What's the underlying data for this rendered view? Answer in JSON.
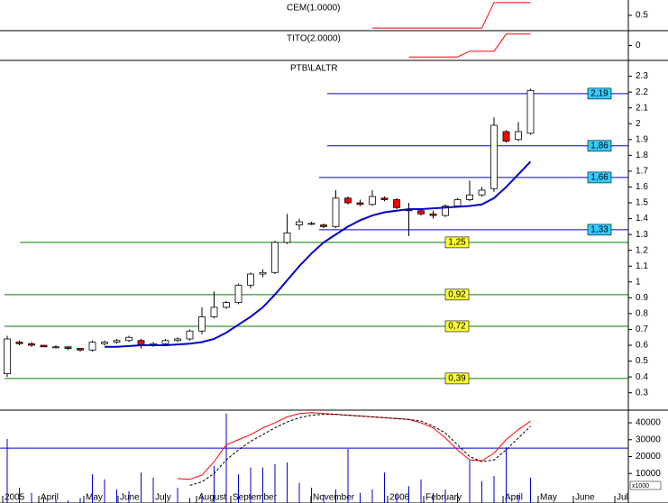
{
  "chart_data": [
    {
      "type": "line",
      "title": "CEM(1.0000)",
      "ylim": [
        -0.1,
        1.1
      ],
      "yticks": [
        0.5
      ],
      "series": [
        {
          "name": "CEM",
          "color": "#ff0000",
          "values": [
            null,
            null,
            null,
            null,
            null,
            null,
            null,
            null,
            null,
            null,
            null,
            null,
            null,
            null,
            null,
            null,
            null,
            null,
            null,
            null,
            null,
            null,
            null,
            null,
            null,
            null,
            null,
            null,
            null,
            null,
            0,
            0,
            0,
            0,
            0,
            0,
            0,
            0,
            0,
            0,
            1,
            1,
            1,
            1
          ]
        }
      ]
    },
    {
      "type": "line",
      "title": "TITO(2.0000)",
      "ylim": [
        -1.3,
        1.3
      ],
      "yticks": [
        0
      ],
      "series": [
        {
          "name": "TITO",
          "color": "#ff0000",
          "values": [
            null,
            null,
            null,
            null,
            null,
            null,
            null,
            null,
            null,
            null,
            null,
            null,
            null,
            null,
            null,
            null,
            null,
            null,
            null,
            null,
            null,
            null,
            null,
            null,
            null,
            null,
            null,
            null,
            null,
            null,
            null,
            null,
            null,
            -1,
            -1,
            -1,
            -1,
            -1,
            -0.5,
            -0.5,
            -0.5,
            1,
            1,
            1
          ]
        }
      ]
    },
    {
      "type": "candlestick",
      "title": "PTB\\LALTR",
      "ylim": [
        0.19,
        2.4
      ],
      "yticks": [
        0.3,
        0.4,
        0.5,
        0.6,
        0.7,
        0.8,
        0.9,
        1,
        1.1,
        1.2,
        1.3,
        1.4,
        1.5,
        1.6,
        1.7,
        1.8,
        1.9,
        2,
        2.1,
        2.2,
        2.3
      ],
      "up_color": "#ffffff",
      "down_color": "#ff0000",
      "candles": [
        {
          "open": 0.42,
          "high": 0.66,
          "low": 0.4,
          "close": 0.64
        },
        {
          "open": 0.62,
          "high": 0.63,
          "low": 0.6,
          "close": 0.61
        },
        {
          "open": 0.61,
          "high": 0.62,
          "low": 0.59,
          "close": 0.6
        },
        {
          "open": 0.6,
          "high": 0.6,
          "low": 0.59,
          "close": 0.59
        },
        {
          "open": 0.59,
          "high": 0.6,
          "low": 0.58,
          "close": 0.59
        },
        {
          "open": 0.59,
          "high": 0.59,
          "low": 0.57,
          "close": 0.58
        },
        {
          "open": 0.58,
          "high": 0.58,
          "low": 0.56,
          "close": 0.57
        },
        {
          "open": 0.57,
          "high": 0.63,
          "low": 0.56,
          "close": 0.62
        },
        {
          "open": 0.61,
          "high": 0.63,
          "low": 0.6,
          "close": 0.62
        },
        {
          "open": 0.62,
          "high": 0.64,
          "low": 0.61,
          "close": 0.63
        },
        {
          "open": 0.63,
          "high": 0.66,
          "low": 0.62,
          "close": 0.65
        },
        {
          "open": 0.63,
          "high": 0.64,
          "low": 0.58,
          "close": 0.6
        },
        {
          "open": 0.6,
          "high": 0.62,
          "low": 0.59,
          "close": 0.61
        },
        {
          "open": 0.61,
          "high": 0.64,
          "low": 0.6,
          "close": 0.63
        },
        {
          "open": 0.63,
          "high": 0.65,
          "low": 0.62,
          "close": 0.64
        },
        {
          "open": 0.64,
          "high": 0.7,
          "low": 0.63,
          "close": 0.69
        },
        {
          "open": 0.69,
          "high": 0.84,
          "low": 0.67,
          "close": 0.78
        },
        {
          "open": 0.78,
          "high": 0.94,
          "low": 0.77,
          "close": 0.84
        },
        {
          "open": 0.84,
          "high": 0.88,
          "low": 0.83,
          "close": 0.87
        },
        {
          "open": 0.87,
          "high": 0.99,
          "low": 0.86,
          "close": 0.98
        },
        {
          "open": 0.98,
          "high": 1.06,
          "low": 0.96,
          "close": 1.05
        },
        {
          "open": 1.05,
          "high": 1.08,
          "low": 1.03,
          "close": 1.06
        },
        {
          "open": 1.06,
          "high": 1.26,
          "low": 1.05,
          "close": 1.25
        },
        {
          "open": 1.25,
          "high": 1.43,
          "low": 1.24,
          "close": 1.31
        },
        {
          "open": 1.36,
          "high": 1.4,
          "low": 1.33,
          "close": 1.38
        },
        {
          "open": 1.37,
          "high": 1.38,
          "low": 1.36,
          "close": 1.37
        },
        {
          "open": 1.36,
          "high": 1.37,
          "low": 1.34,
          "close": 1.35
        },
        {
          "open": 1.35,
          "high": 1.58,
          "low": 1.34,
          "close": 1.53
        },
        {
          "open": 1.53,
          "high": 1.54,
          "low": 1.49,
          "close": 1.5
        },
        {
          "open": 1.5,
          "high": 1.52,
          "low": 1.48,
          "close": 1.49
        },
        {
          "open": 1.49,
          "high": 1.58,
          "low": 1.48,
          "close": 1.54
        },
        {
          "open": 1.53,
          "high": 1.54,
          "low": 1.51,
          "close": 1.52
        },
        {
          "open": 1.52,
          "high": 1.53,
          "low": 1.46,
          "close": 1.47
        },
        {
          "open": 1.46,
          "high": 1.5,
          "low": 1.29,
          "close": 1.45
        },
        {
          "open": 1.45,
          "high": 1.46,
          "low": 1.42,
          "close": 1.43
        },
        {
          "open": 1.43,
          "high": 1.45,
          "low": 1.4,
          "close": 1.42
        },
        {
          "open": 1.42,
          "high": 1.49,
          "low": 1.41,
          "close": 1.48
        },
        {
          "open": 1.48,
          "high": 1.53,
          "low": 1.47,
          "close": 1.52
        },
        {
          "open": 1.52,
          "high": 1.64,
          "low": 1.51,
          "close": 1.55
        },
        {
          "open": 1.55,
          "high": 1.6,
          "low": 1.54,
          "close": 1.58
        },
        {
          "open": 1.59,
          "high": 2.04,
          "low": 1.57,
          "close": 1.99
        },
        {
          "open": 1.95,
          "high": 1.96,
          "low": 1.88,
          "close": 1.89
        },
        {
          "open": 1.9,
          "high": 2.01,
          "low": 1.89,
          "close": 1.95
        },
        {
          "open": 1.94,
          "high": 2.22,
          "low": 1.93,
          "close": 2.21
        }
      ],
      "series": [
        {
          "name": "MA",
          "color": "#0000cc",
          "values": [
            null,
            null,
            null,
            null,
            null,
            null,
            null,
            null,
            0.59,
            0.59,
            0.595,
            0.6,
            0.6,
            0.6,
            0.605,
            0.61,
            0.62,
            0.64,
            0.68,
            0.73,
            0.78,
            0.84,
            0.92,
            1.01,
            1.1,
            1.18,
            1.25,
            1.3,
            1.35,
            1.39,
            1.42,
            1.44,
            1.45,
            1.46,
            1.46,
            1.465,
            1.47,
            1.475,
            1.48,
            1.49,
            1.53,
            1.6,
            1.68,
            1.76
          ]
        }
      ],
      "levels": [
        {
          "value": 2.19,
          "label": "2,19",
          "color": "#0000cc",
          "label_color": "#33ccff"
        },
        {
          "value": 1.86,
          "label": "1,86",
          "color": "#0000cc",
          "label_color": "#33ccff"
        },
        {
          "value": 1.66,
          "label": "1,66",
          "color": "#0000cc",
          "label_color": "#33ccff"
        },
        {
          "value": 1.33,
          "label": "1,33",
          "color": "#0000cc",
          "label_color": "#33ccff"
        },
        {
          "value": 1.25,
          "label": "1,25",
          "color": "#008000",
          "label_color": "#ffff33"
        },
        {
          "value": 0.92,
          "label": "0,92",
          "color": "#008000",
          "label_color": "#ffff33"
        },
        {
          "value": 0.72,
          "label": "0,72",
          "color": "#008000",
          "label_color": "#ffff33"
        },
        {
          "value": 0.39,
          "label": "0,39",
          "color": "#008000",
          "label_color": "#ffff33"
        }
      ]
    },
    {
      "type": "volume",
      "ylim": [
        -7500,
        47500
      ],
      "yticks": [
        10000,
        20000,
        30000,
        40000
      ],
      "unit": "x1000",
      "y2lim": [
        0,
        55000
      ],
      "x_labels": [
        "2005",
        "April",
        "May",
        "June",
        "July",
        "August",
        "September",
        "November",
        "2006",
        "February",
        "April",
        "May",
        "June",
        "Jul"
      ],
      "levels": [
        {
          "value": 25000,
          "color": "#0000cc"
        }
      ],
      "series": [
        {
          "name": "Volume",
          "color": "#0000cc",
          "axis": "y2",
          "values": [
            38000,
            9000,
            6000,
            3000,
            2000,
            1500,
            3000,
            17000,
            14000,
            8000,
            7000,
            18000,
            15000,
            5000,
            9000,
            3000,
            6000,
            22000,
            53000,
            17000,
            21000,
            21000,
            23000,
            24000,
            12000,
            9000,
            5000,
            8000,
            32000,
            6000,
            8000,
            18000,
            5000,
            10000,
            14000,
            6000,
            8000,
            6000,
            25000,
            13000,
            16000,
            33000,
            5000,
            15000
          ]
        },
        {
          "name": "Oscillator",
          "color": "#ff0000",
          "values": [
            null,
            null,
            null,
            null,
            null,
            null,
            null,
            null,
            null,
            null,
            null,
            null,
            null,
            null,
            7000,
            6500,
            9000,
            17000,
            27000,
            30000,
            33000,
            37000,
            40000,
            43500,
            45500,
            46000,
            45500,
            45000,
            44500,
            44000,
            43500,
            43000,
            42500,
            42000,
            40000,
            37000,
            31000,
            24000,
            18000,
            17500,
            22000,
            30000,
            36000,
            41000
          ]
        },
        {
          "name": "Signal",
          "color": "#000000",
          "dashed": true,
          "values": [
            null,
            null,
            null,
            null,
            null,
            null,
            null,
            null,
            null,
            null,
            null,
            null,
            null,
            null,
            null,
            3000,
            5000,
            10000,
            18000,
            24000,
            29000,
            33000,
            37000,
            40500,
            43000,
            44500,
            45000,
            45000,
            44500,
            44000,
            43500,
            43000,
            42500,
            42000,
            41000,
            38000,
            34000,
            27000,
            20000,
            17000,
            18000,
            24000,
            31000,
            38000
          ]
        }
      ]
    }
  ]
}
